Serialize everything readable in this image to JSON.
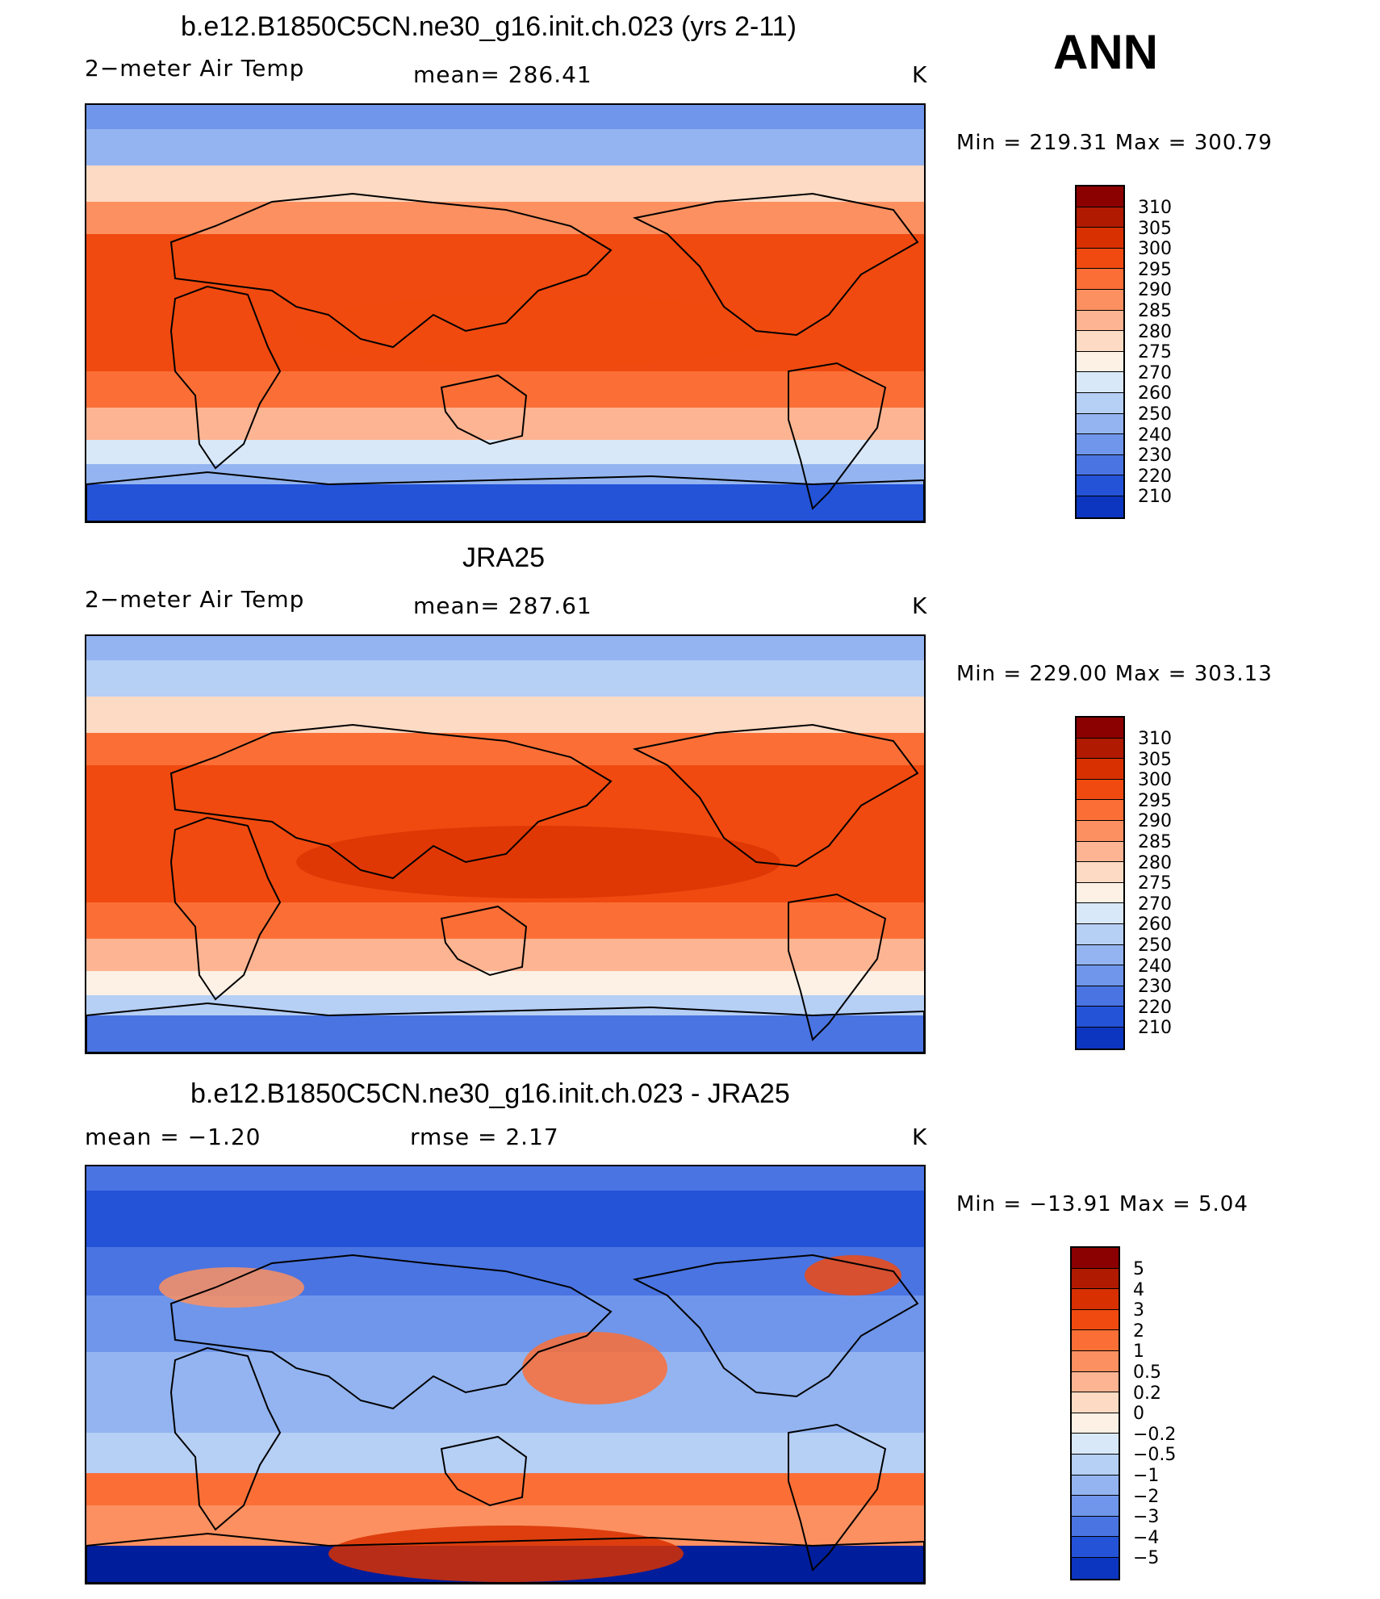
{
  "season_label": "ANN",
  "panels": [
    {
      "title": "b.e12.B1850C5CN.ne30_g16.init.ch.023 (yrs 2-11)",
      "left_label": "2−meter Air Temp",
      "center_label": "mean=  286.41",
      "units": "K",
      "min_max": "Min  =  219.31  Max  =  300.79",
      "legend_labels": [
        "310",
        "305",
        "300",
        "295",
        "290",
        "285",
        "280",
        "275",
        "270",
        "260",
        "250",
        "240",
        "230",
        "220",
        "210"
      ],
      "legend_colors": [
        "#8b0000",
        "#b01a00",
        "#d83000",
        "#f04a10",
        "#fb6f36",
        "#fc9060",
        "#fdb492",
        "#fddac3",
        "#fdf0e4",
        "#d8e8f8",
        "#b6cff5",
        "#93b4f0",
        "#6f96ea",
        "#4a74e2",
        "#2453d8",
        "#0c35c0",
        "#001d9c",
        "#001082"
      ],
      "map_style": "model"
    },
    {
      "title": "JRA25",
      "left_label": "2−meter Air Temp",
      "center_label": "mean=  287.61",
      "units": "K",
      "min_max": "Min  =  229.00  Max  =  303.13",
      "legend_labels": [
        "310",
        "305",
        "300",
        "295",
        "290",
        "285",
        "280",
        "275",
        "270",
        "260",
        "250",
        "240",
        "230",
        "220",
        "210"
      ],
      "legend_colors": [
        "#8b0000",
        "#b01a00",
        "#d83000",
        "#f04a10",
        "#fb6f36",
        "#fc9060",
        "#fdb492",
        "#fddac3",
        "#fdf0e4",
        "#d8e8f8",
        "#b6cff5",
        "#93b4f0",
        "#6f96ea",
        "#4a74e2",
        "#2453d8",
        "#0c35c0",
        "#001d9c",
        "#001082"
      ],
      "map_style": "obs"
    },
    {
      "title": "b.e12.B1850C5CN.ne30_g16.init.ch.023 - JRA25",
      "left_label": "mean  =   −1.20",
      "center_label": "rmse  =     2.17",
      "units": "K",
      "min_max": "Min  =  −13.91  Max  =     5.04",
      "legend_labels": [
        "5",
        "4",
        "3",
        "2",
        "1",
        "0.5",
        "0.2",
        "0",
        "−0.2",
        "−0.5",
        "−1",
        "−2",
        "−3",
        "−4",
        "−5"
      ],
      "legend_colors": [
        "#8b0000",
        "#b01a00",
        "#d83000",
        "#f04a10",
        "#fb6f36",
        "#fc9060",
        "#fdb492",
        "#fddac3",
        "#fdf0e4",
        "#d8e8f8",
        "#b6cff5",
        "#93b4f0",
        "#6f96ea",
        "#4a74e2",
        "#2453d8",
        "#0c35c0",
        "#001d9c",
        "#001082"
      ],
      "map_style": "diff"
    }
  ]
}
